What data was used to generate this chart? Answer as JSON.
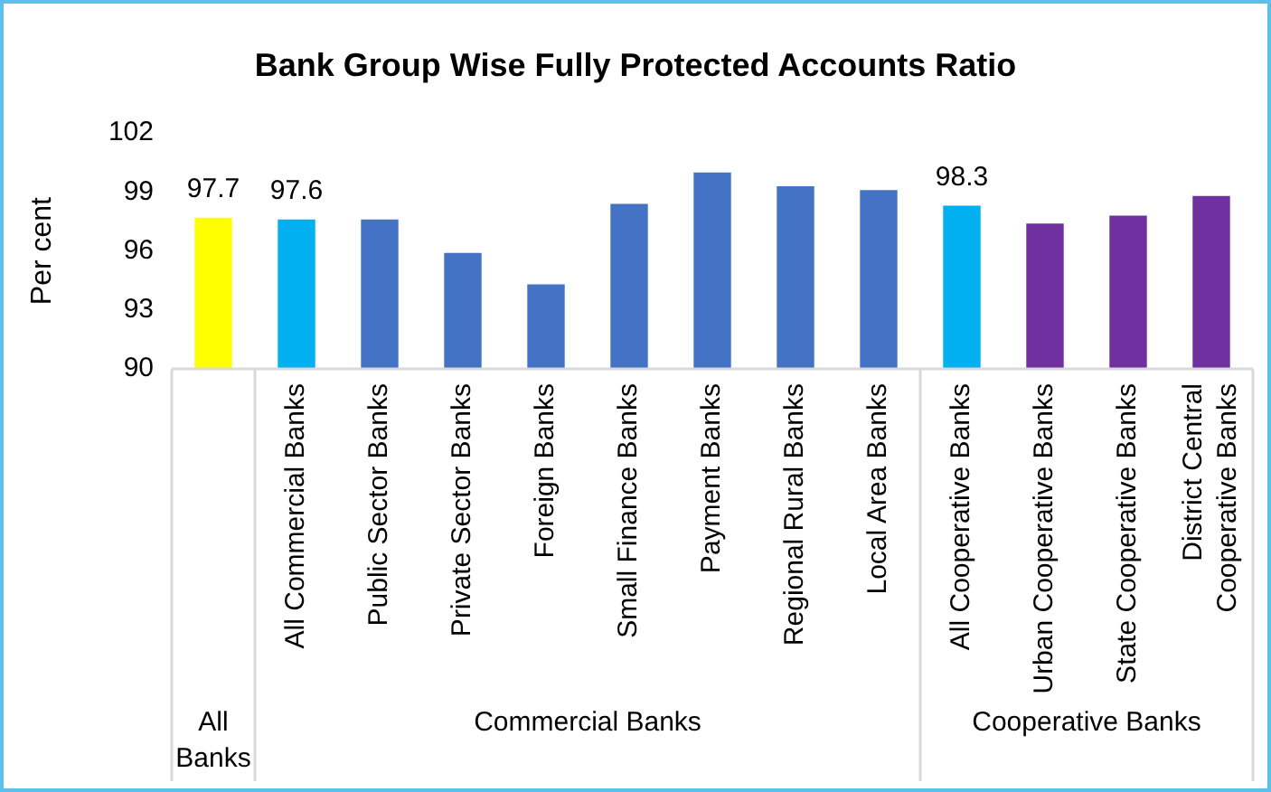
{
  "chart_data": {
    "type": "bar",
    "title": "Bank Group Wise Fully Protected Accounts Ratio",
    "ylabel": "Per cent",
    "categories": [
      null,
      "All Commercial Banks",
      "Public Sector Banks",
      "Private Sector Banks",
      "Foreign Banks",
      "Small Finance Banks",
      "Payment Banks",
      "Regional Rural Banks",
      "Local Area Banks",
      "All Cooperative Banks",
      "Urban Cooperative Banks",
      "State Cooperative Banks",
      "District Central Cooperative Banks"
    ],
    "values": [
      97.7,
      97.6,
      97.6,
      95.9,
      94.3,
      98.4,
      100.0,
      99.3,
      99.1,
      98.3,
      97.4,
      97.8,
      98.8
    ],
    "colors": [
      "#ffff00",
      "#00b0f0",
      "#4472c4",
      "#4472c4",
      "#4472c4",
      "#4472c4",
      "#4472c4",
      "#4472c4",
      "#4472c4",
      "#00b0f0",
      "#7030a0",
      "#7030a0",
      "#7030a0"
    ],
    "value_labels": [
      "97.7",
      "97.6",
      null,
      null,
      null,
      null,
      null,
      null,
      null,
      "98.3",
      null,
      null,
      null
    ],
    "annotations": [
      "All Banks",
      "Commercial Banks",
      "Cooperative Banks"
    ],
    "ylim": [
      90,
      102
    ],
    "yticks": [
      90,
      93,
      96,
      99,
      102
    ],
    "grid": false,
    "legend": false
  }
}
